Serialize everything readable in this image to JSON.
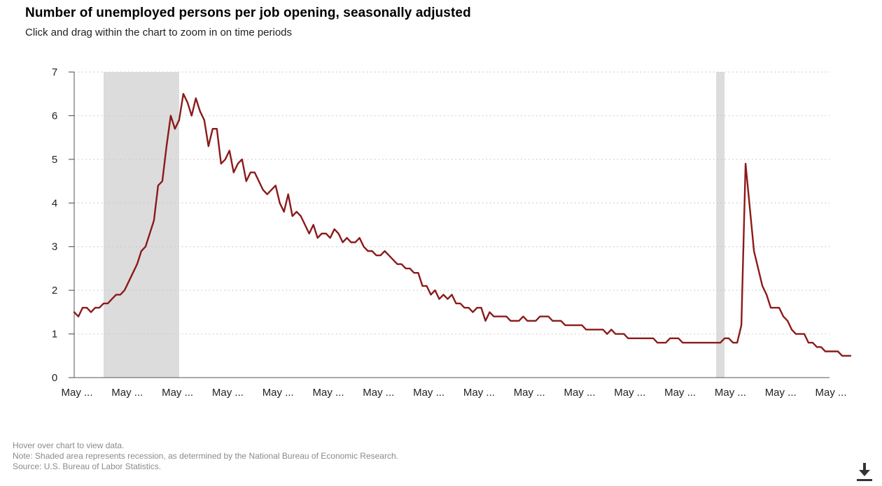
{
  "header": {
    "title": "Number of unemployed persons per job opening, seasonally adjusted",
    "subtitle": "Click and drag within the chart to zoom in on time periods"
  },
  "footer": {
    "hover_note": "Hover over chart to view data.",
    "recession_note": "Note: Shaded area represents recession, as determined by the National Bureau of Economic Research.",
    "source": "Source: U.S. Bureau of Labor Statistics."
  },
  "icons": {
    "download": "download-icon"
  },
  "colors": {
    "line": "#8b1a1a",
    "recession": "#dcdcdc",
    "grid": "#c8c8c8"
  },
  "chart_data": {
    "type": "line",
    "title": "Number of unemployed persons per job opening, seasonally adjusted",
    "subtitle": "Click and drag within the chart to zoom in on time periods",
    "xlabel": "",
    "ylabel": "",
    "ylim": [
      0,
      7
    ],
    "yticks": [
      0,
      1,
      2,
      3,
      4,
      5,
      6,
      7
    ],
    "xtick_labels": [
      "May ...",
      "May ...",
      "May ...",
      "May ...",
      "May ...",
      "May ...",
      "May ...",
      "May ...",
      "May ...",
      "May ...",
      "May ...",
      "May ...",
      "May ...",
      "May ...",
      "May ...",
      "May ..."
    ],
    "grid": true,
    "legend": "none",
    "recessions": [
      {
        "start_year": 2007.917,
        "end_year": 2009.417
      },
      {
        "start_year": 2020.083,
        "end_year": 2020.25
      }
    ],
    "series": [
      {
        "x_start_year": 2007.333,
        "frequency": "monthly",
        "values": [
          1.5,
          1.4,
          1.6,
          1.6,
          1.5,
          1.6,
          1.6,
          1.7,
          1.7,
          1.8,
          1.9,
          1.9,
          2.0,
          2.2,
          2.4,
          2.6,
          2.9,
          3.0,
          3.3,
          3.6,
          4.4,
          4.5,
          5.3,
          6.0,
          5.7,
          5.9,
          6.5,
          6.3,
          6.0,
          6.4,
          6.1,
          5.9,
          5.3,
          5.7,
          5.7,
          4.9,
          5.0,
          5.2,
          4.7,
          4.9,
          5.0,
          4.5,
          4.7,
          4.7,
          4.5,
          4.3,
          4.2,
          4.3,
          4.4,
          4.0,
          3.8,
          4.2,
          3.7,
          3.8,
          3.7,
          3.5,
          3.3,
          3.5,
          3.2,
          3.3,
          3.3,
          3.2,
          3.4,
          3.3,
          3.1,
          3.2,
          3.1,
          3.1,
          3.2,
          3.0,
          2.9,
          2.9,
          2.8,
          2.8,
          2.9,
          2.8,
          2.7,
          2.6,
          2.6,
          2.5,
          2.5,
          2.4,
          2.4,
          2.1,
          2.1,
          1.9,
          2.0,
          1.8,
          1.9,
          1.8,
          1.9,
          1.7,
          1.7,
          1.6,
          1.6,
          1.5,
          1.6,
          1.6,
          1.3,
          1.5,
          1.4,
          1.4,
          1.4,
          1.4,
          1.3,
          1.3,
          1.3,
          1.4,
          1.3,
          1.3,
          1.3,
          1.4,
          1.4,
          1.4,
          1.3,
          1.3,
          1.3,
          1.2,
          1.2,
          1.2,
          1.2,
          1.2,
          1.1,
          1.1,
          1.1,
          1.1,
          1.1,
          1.0,
          1.1,
          1.0,
          1.0,
          1.0,
          0.9,
          0.9,
          0.9,
          0.9,
          0.9,
          0.9,
          0.9,
          0.8,
          0.8,
          0.8,
          0.9,
          0.9,
          0.9,
          0.8,
          0.8,
          0.8,
          0.8,
          0.8,
          0.8,
          0.8,
          0.8,
          0.8,
          0.8,
          0.9,
          0.9,
          0.8,
          0.8,
          1.2,
          4.9,
          3.9,
          2.9,
          2.5,
          2.1,
          1.9,
          1.6,
          1.6,
          1.6,
          1.4,
          1.3,
          1.1,
          1.0,
          1.0,
          1.0,
          0.8,
          0.8,
          0.7,
          0.7,
          0.6,
          0.6,
          0.6,
          0.6,
          0.5,
          0.5,
          0.5
        ]
      }
    ]
  }
}
